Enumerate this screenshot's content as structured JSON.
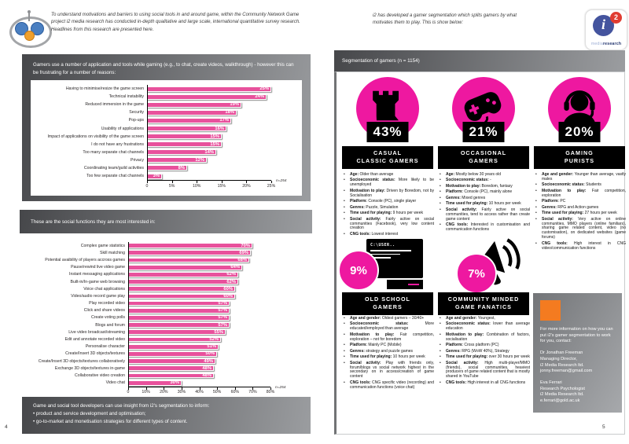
{
  "accent": {
    "pink": "#ee18a0",
    "bar_pink": "#e8519c",
    "orange": "#f47b20",
    "gray_dark": "#46474a",
    "gray_light": "#9b9da0"
  },
  "page_left": {
    "intro": "To understand motivations and barriers to using social tools in and around game, within the Community Network Game project i2 media research has conducted in-depth qualitative and large scale, international quantitative survey research. Headlines from this research are presented here.",
    "box1_header": "Gamers use a number of application and tools while gaming (e.g., to chat, create videos, walkthrough)  - however this can be frustrating for a number of reasons:",
    "box2_header": "These are the social functions they are most interested in:",
    "box3_title": "Game and social tool developers can use insight from i2's segmentation to inform:",
    "box3_bullets": [
      "product and service development and optimisation;",
      "go-to-market and monetisation strategies for different types of content."
    ],
    "page_number": "4"
  },
  "page_right": {
    "intro": "i2 has developed a gamer segmentation which splits gamers by what motivates them to play. This is show below:",
    "logo": {
      "i": "i",
      "two": "2",
      "media": "media",
      "research": "research"
    },
    "seg_header": "Segmentation of gamers (n = 1154)",
    "contact_box": {
      "intro": "For more information on how you can put i2's gamer segmentation to work for you, contact:",
      "contacts": [
        {
          "lines": [
            "Dr Jonathan Freeman",
            "Managing Director,",
            "i2 Media Research ltd.",
            "jonny.freeman@gmail.com"
          ]
        },
        {
          "lines": [
            "Eva Ferrari",
            "Research Psychologist",
            "i2 Media Research ltd.",
            "e.ferrari@gold.ac.uk"
          ]
        }
      ]
    },
    "page_number": "5"
  },
  "chart_data": [
    {
      "type": "bar",
      "orientation": "horizontal",
      "title": "Frustrations with applications and tools while gaming",
      "categories": [
        "Having to minimise/resize the game screen",
        "Technical instability",
        "Reduced immersion in the game",
        "Security",
        "Pop-ups",
        "Usability of applications",
        "Impact of applications on visibility of the game screen",
        "I do not have any frustrations",
        "Too many separate chat channels",
        "Privacy",
        "Coordinating team/guild activities",
        "Too few separate chat channels"
      ],
      "values": [
        25,
        24,
        19,
        18,
        17,
        16,
        15,
        15,
        14,
        12,
        8,
        3
      ],
      "value_suffix": "%",
      "xlim": [
        0,
        25
      ],
      "xticks": [
        "0",
        "5%",
        "10%",
        "15%",
        "20%",
        "25%"
      ],
      "note": "n=254",
      "bar_color": "#e8519c",
      "grid": false,
      "legend": false
    },
    {
      "type": "bar",
      "orientation": "horizontal",
      "title": "Social functions gamers are most interested in",
      "categories": [
        "Complex game statistics",
        "Skill matching",
        "Potential avaibility of players accross games",
        "Pause/rewind live video game",
        "Instant messaging applications",
        "Built-in/In-game web browsing",
        "Voice chat applications",
        "Video/audio record game play",
        "Play recorded video",
        "Click and share videos",
        "Create voting polls",
        "Blogs and forum",
        "Live video broadcast/streaming",
        "Edit and annotate recorded video",
        "Personalise character",
        "Create/Insert 3D objects/textures",
        "Create/Insert 3D objects/textures collaboratively",
        "Exchange 3D objects/textures in-game",
        "Collaborative video creation",
        "Video chat"
      ],
      "values": [
        70,
        69,
        68,
        64,
        62,
        62,
        60,
        60,
        57,
        57,
        57,
        57,
        55,
        52,
        51,
        50,
        49,
        48,
        48,
        30
      ],
      "value_suffix": "%",
      "xlim": [
        0,
        80
      ],
      "xticks": [
        "0",
        "10%",
        "20%",
        "30%",
        "40%",
        "50%",
        "60%",
        "70%",
        "80%"
      ],
      "note": "n=254",
      "bar_color": "#e8519c",
      "grid": false,
      "legend": false
    }
  ],
  "segments": [
    {
      "percent": "43%",
      "name_lines": [
        "CASUAL",
        "CLASSIC GAMERS"
      ],
      "icon": "rook-icon",
      "bullets": [
        {
          "label": "Age:",
          "text": "Older than average"
        },
        {
          "label": "Socioeconomic status:",
          "text": "More likely to be unemployed"
        },
        {
          "label": "Motivation to play:",
          "text": "Driven by Boredom, not by Socialisation"
        },
        {
          "label": "Platform:",
          "text": "Console (PC), single player"
        },
        {
          "label": "Genres:",
          "text": "Puzzle, Simulation"
        },
        {
          "label": "Time used for playing:",
          "text": "9 hours per week"
        },
        {
          "label": "Social activity:",
          "text": "Fairly active on social communities (Facebook), very low content creation"
        },
        {
          "label": "CNG tools:",
          "text": "Lowest interest"
        }
      ]
    },
    {
      "percent": "21%",
      "name_lines": [
        "OCCASIONAL",
        "GAMERS"
      ],
      "icon": "gamepad-icon",
      "bullets": [
        {
          "label": "Age:",
          "text": "Mostly below 30 years old"
        },
        {
          "label": "Socioeconomic status:",
          "text": "-"
        },
        {
          "label": "Motivation to play:",
          "text": "Boredom, fantasy"
        },
        {
          "label": "Platform:",
          "text": "Console (PC), mainly alone"
        },
        {
          "label": "Genres:",
          "text": "Mixed genres"
        },
        {
          "label": "Time used for playing:",
          "text": "10 hours per week"
        },
        {
          "label": "Social activity:",
          "text": "Fairly active on social communities, tend to access rather than create game content"
        },
        {
          "label": "CNG tools:",
          "text": "Interested in customisation and communication functions"
        }
      ]
    },
    {
      "percent": "20%",
      "name_lines": [
        "GAMING",
        "PURISTS"
      ],
      "icon": "headset-icon",
      "bullets": [
        {
          "label": "Age and gender:",
          "text": "Younger than average, vastly males"
        },
        {
          "label": "Socioeconomic status:",
          "text": "Students"
        },
        {
          "label": "Motivation to play:",
          "text": "Fair competition, exploration"
        },
        {
          "label": "Platform:",
          "text": "PC"
        },
        {
          "label": "Genres:",
          "text": "RPG and Action games"
        },
        {
          "label": "Time used for playing:",
          "text": "27 hours per week"
        },
        {
          "label": "Social activity:",
          "text": "Very active on online communities, MMO players (online familiars), sharing game related content, video (no customisation), on dedicated websites (game forums)"
        },
        {
          "label": "CNG tools:",
          "text": "High interest in CNG video/communication functions"
        }
      ]
    },
    {
      "percent": "9%",
      "name_lines": [
        "OLD SCHOOL",
        "GAMERS"
      ],
      "icon": "retro-computer-icon",
      "icon_text": "C:\\USER..",
      "bullets": [
        {
          "label": "Age and gender:",
          "text": "Oldest gamers – 30/40+"
        },
        {
          "label": "Socioeconomic status:",
          "text": "More educated/employed than average"
        },
        {
          "label": "Motivation to play:",
          "text": "Fair competition, exploration – not for boredom"
        },
        {
          "label": "Platform:",
          "text": "Mainly PC (Mobile)"
        },
        {
          "label": "Genres:",
          "text": "strategy and puzzle games"
        },
        {
          "label": "Time used for playing:",
          "text": "10 hours per week"
        },
        {
          "label": "Social activity:",
          "text": "Play with friends only, forum/blogs vs social network highest in the secondary on in access/creation of game content"
        },
        {
          "label": "CNG tools:",
          "text": "CNG specific video (recording) and communication functions (voice chat)"
        }
      ]
    },
    {
      "percent": "7%",
      "name_lines": [
        "COMMUNITY MINDED",
        "GAME FANATICS"
      ],
      "icon": "megaphone-icon",
      "bullets": [
        {
          "label": "Age and gender:",
          "text": "Youngest,"
        },
        {
          "label": "Socioeconomic status:",
          "text": "lower than average education"
        },
        {
          "label": "Motivation to play:",
          "text": "Combination of factors, socialisation"
        },
        {
          "label": "Platform:",
          "text": "Cross platform (PC)"
        },
        {
          "label": "Genres:",
          "text": "RPG (WoW 40%), Strategy"
        },
        {
          "label": "Time used for playing:",
          "text": "over 30 hours per week"
        },
        {
          "label": "Social activity:",
          "text": "High multi-player/MMO (friends), social communities, heaviest producers of game related content that is mostly shared in YouTube"
        },
        {
          "label": "CNG tools:",
          "text": "High interest in all CNG functions"
        }
      ]
    }
  ]
}
